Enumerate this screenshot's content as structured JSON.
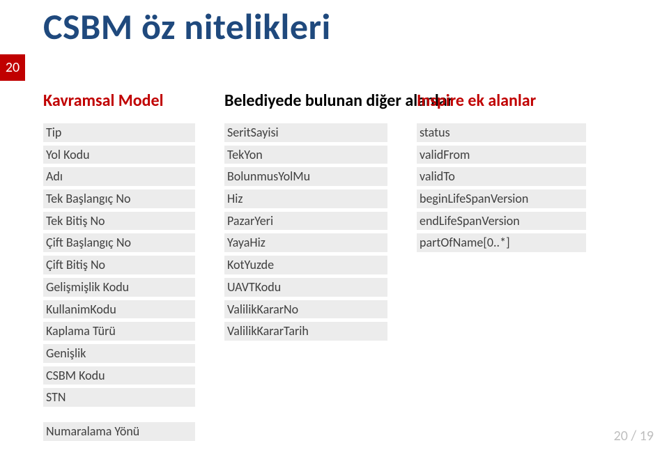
{
  "badge": "20",
  "title": "CSBM öz nitelikleri",
  "columns": {
    "model": {
      "head": "Kavramsal Model",
      "items": [
        "Tip",
        "Yol Kodu",
        "Adı",
        "Tek Başlangıç No",
        "Tek Bitiş No",
        "Çift Başlangıç No",
        "Çift Bitiş No",
        "Gelişmişlik Kodu",
        "KullanimKodu",
        "Kaplama Türü",
        "Genişlik",
        "CSBM Kodu",
        "STN"
      ],
      "extra": [
        "Numaralama Yönü"
      ]
    },
    "belediye": {
      "head": "Belediyede bulunan diğer alanlar",
      "items": [
        "SeritSayisi",
        "TekYon",
        "BolunmusYolMu",
        "Hiz",
        "PazarYeri",
        "YayaHiz",
        "KotYuzde",
        "UAVTKodu",
        "ValilikKararNo",
        "ValilikKararTarih"
      ]
    },
    "inspire": {
      "head": "Inspire ek alanlar",
      "items": [
        "status",
        "validFrom",
        "validTo",
        "beginLifeSpanVersion",
        "endLifeSpanVersion",
        "partOfName[0..*]"
      ]
    }
  },
  "footer": "20 / 19",
  "colors": {
    "accent": "#c00000",
    "title": "#1f497d",
    "item_bg": "#ececec",
    "item_text": "#404040",
    "footer_text": "#bfbfbf"
  }
}
